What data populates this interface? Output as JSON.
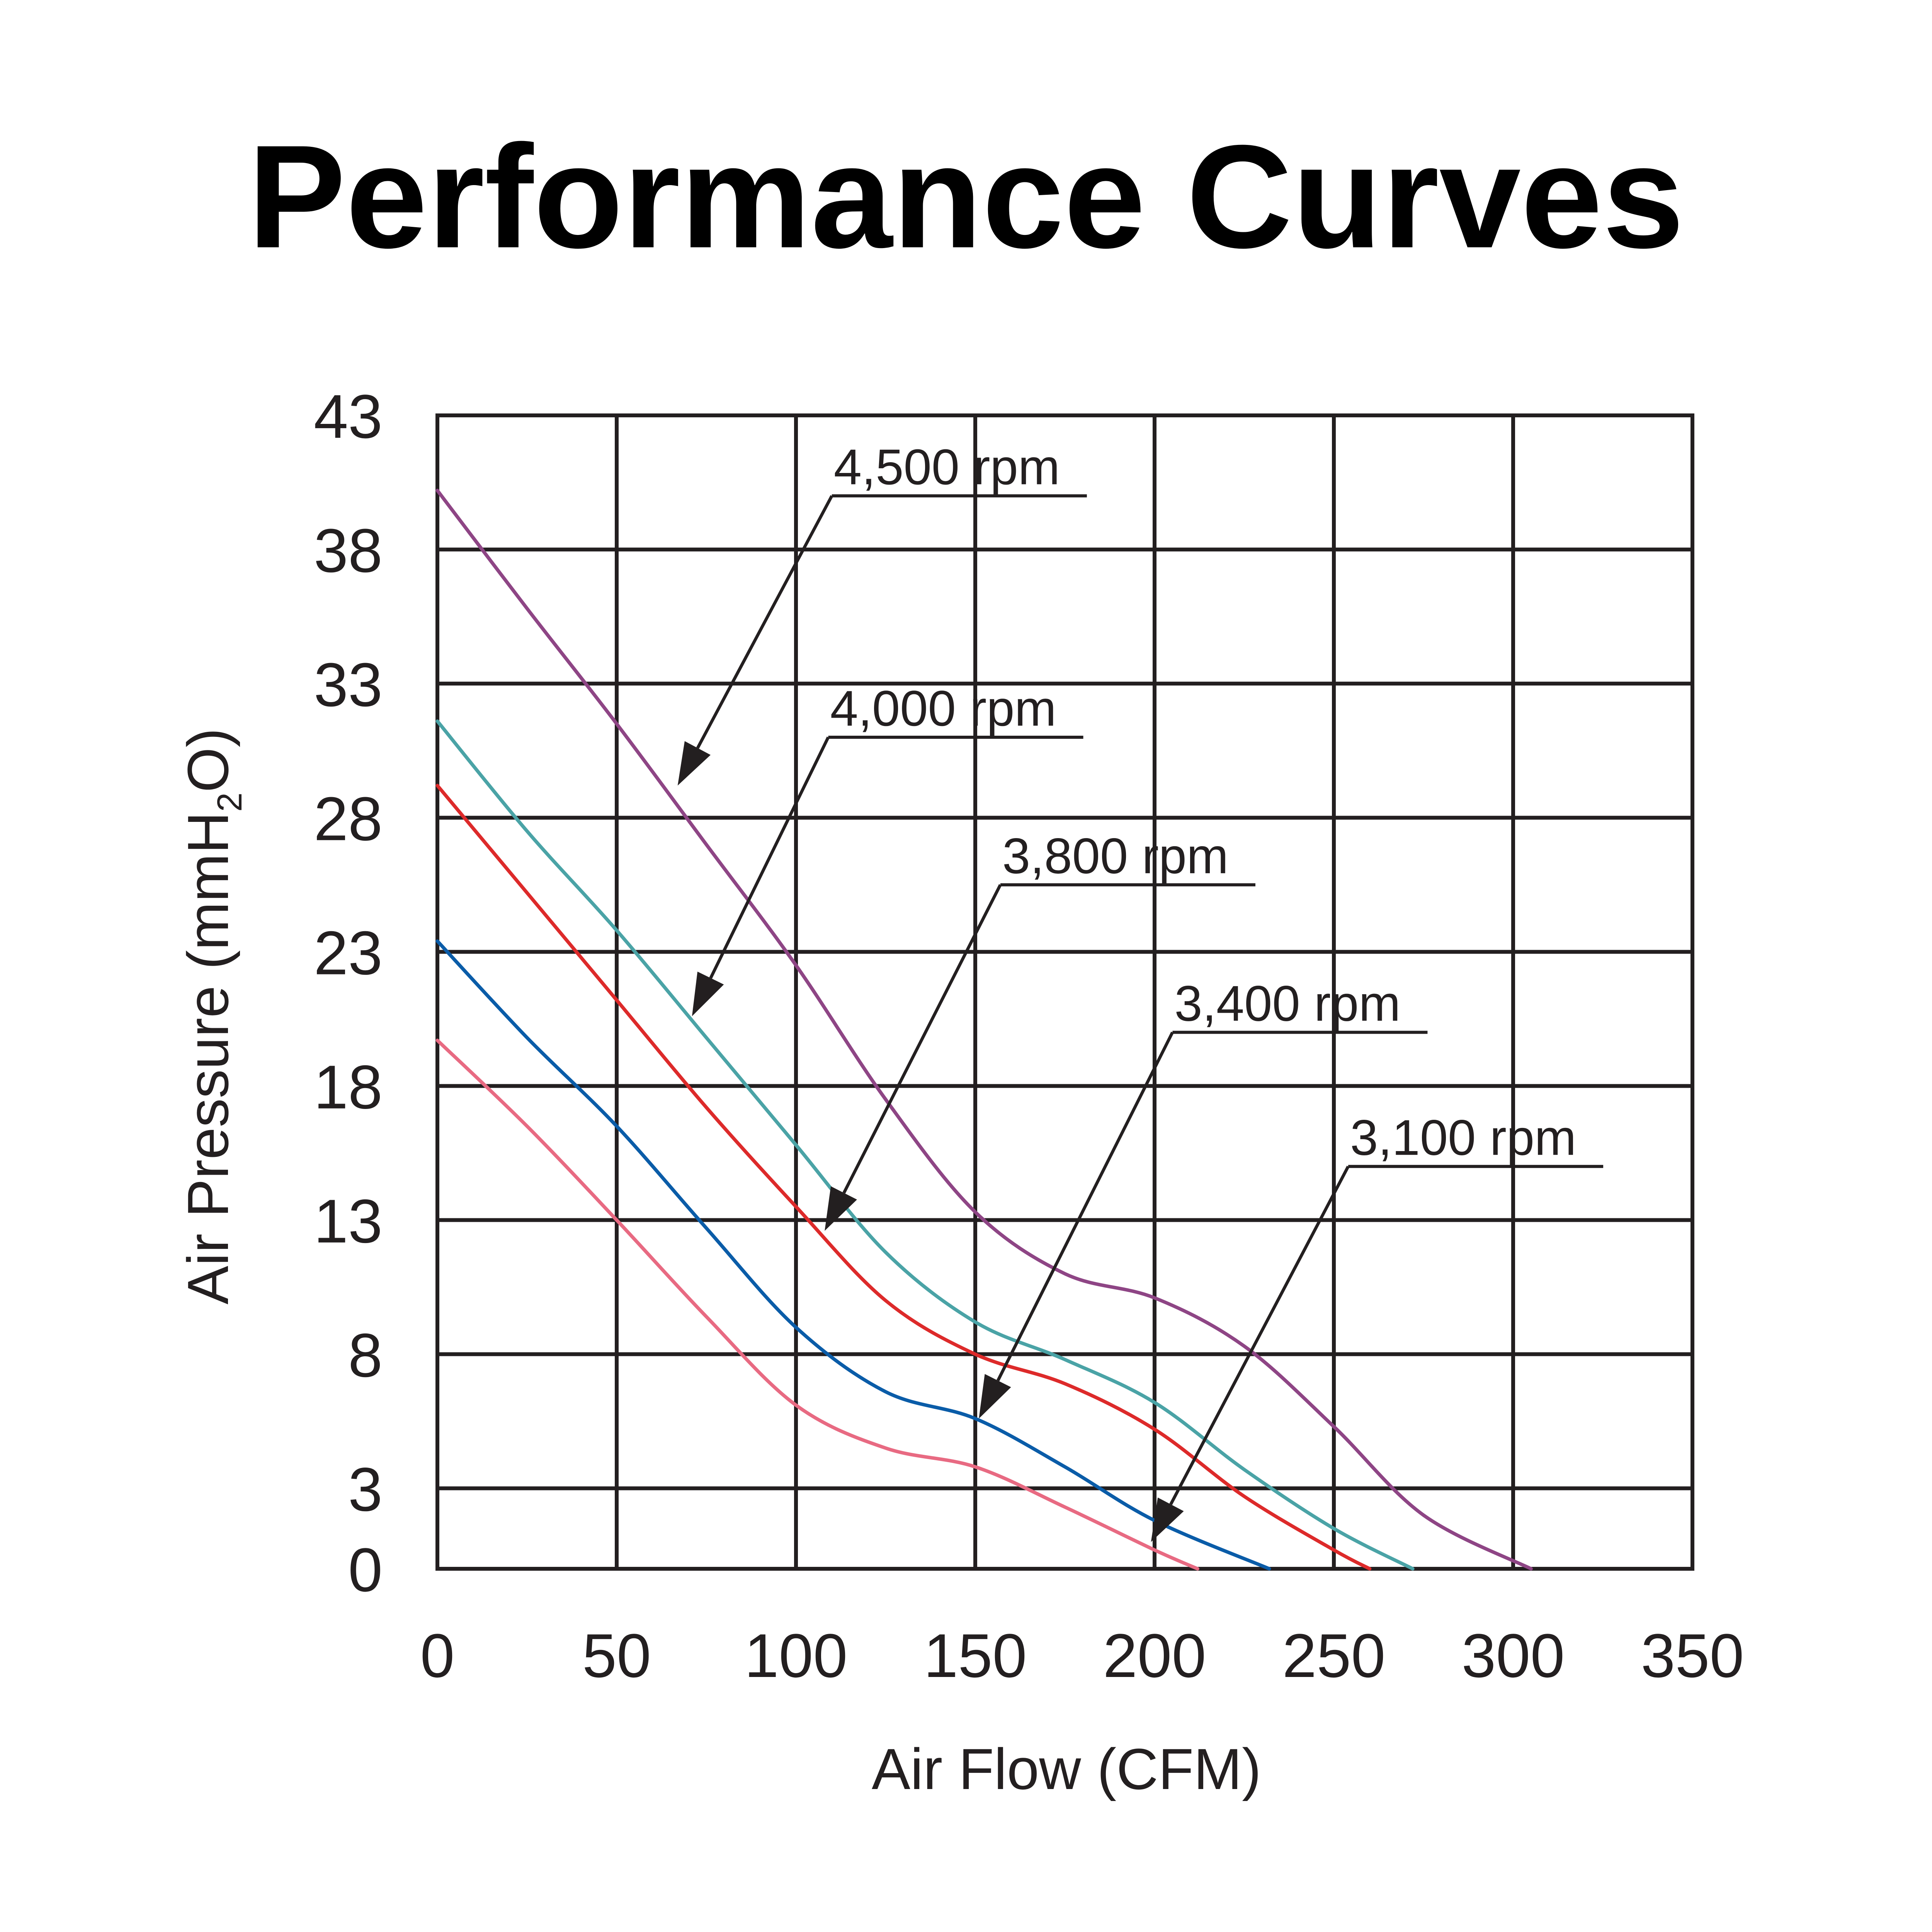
{
  "chart_data": {
    "type": "line",
    "title": "Performance Curves",
    "xlabel": "Air Flow (CFM)",
    "ylabel": "Air Pressure (mmH2O)",
    "ylabel_parts": {
      "main": "Air Pressure (mmH",
      "sub": "2",
      "tail": "O)"
    },
    "xlim": [
      0,
      350
    ],
    "ylim": [
      0,
      43
    ],
    "xticks": [
      0,
      50,
      100,
      150,
      200,
      250,
      300,
      350
    ],
    "yticks": [
      0,
      3,
      8,
      13,
      18,
      23,
      28,
      33,
      38,
      43
    ],
    "grid": true,
    "legend": "inline annotations with arrows",
    "series": [
      {
        "name": "4,500 rpm",
        "color": "#8e4585",
        "x": [
          0,
          25,
          50,
          75,
          100,
          125,
          150,
          175,
          200,
          225,
          250,
          275,
          305
        ],
        "y": [
          40.2,
          35.8,
          31.5,
          27.0,
          22.5,
          17.5,
          13.3,
          11.0,
          10.1,
          8.3,
          5.3,
          2.0,
          0
        ],
        "arrow_target": [
          67,
          29.2
        ],
        "label_anchor": [
          110,
          40.0
        ]
      },
      {
        "name": "4,000 rpm",
        "color": "#4aa3a6",
        "x": [
          0,
          25,
          50,
          75,
          100,
          125,
          150,
          175,
          200,
          225,
          250,
          272
        ],
        "y": [
          31.6,
          27.5,
          23.8,
          19.8,
          15.8,
          11.8,
          9.2,
          7.8,
          6.2,
          3.7,
          1.5,
          0
        ],
        "arrow_target": [
          71,
          20.6
        ],
        "label_anchor": [
          109,
          31.0
        ]
      },
      {
        "name": "3,800 rpm",
        "color": "#dd2a2a",
        "x": [
          0,
          25,
          50,
          75,
          100,
          125,
          150,
          175,
          200,
          225,
          250,
          260
        ],
        "y": [
          29.2,
          25.2,
          21.2,
          17.2,
          13.5,
          10.0,
          8.0,
          6.9,
          5.2,
          2.7,
          0.7,
          0
        ],
        "arrow_target": [
          108,
          12.6
        ],
        "label_anchor": [
          157,
          25.5
        ]
      },
      {
        "name": "3,400 rpm",
        "color": "#0a5ca8",
        "x": [
          0,
          25,
          50,
          75,
          100,
          125,
          150,
          175,
          200,
          232
        ],
        "y": [
          23.4,
          19.8,
          16.5,
          12.7,
          9.0,
          6.6,
          5.6,
          3.8,
          1.8,
          0
        ],
        "arrow_target": [
          151,
          5.6
        ],
        "label_anchor": [
          205,
          20.0
        ]
      },
      {
        "name": "3,100 rpm",
        "color": "#e86a82",
        "x": [
          0,
          25,
          50,
          75,
          100,
          125,
          150,
          175,
          200,
          212
        ],
        "y": [
          19.7,
          16.5,
          13.0,
          9.4,
          6.1,
          4.5,
          3.8,
          2.3,
          0.7,
          0
        ],
        "arrow_target": [
          199,
          1.0
        ],
        "label_anchor": [
          254,
          15.0
        ]
      }
    ]
  }
}
